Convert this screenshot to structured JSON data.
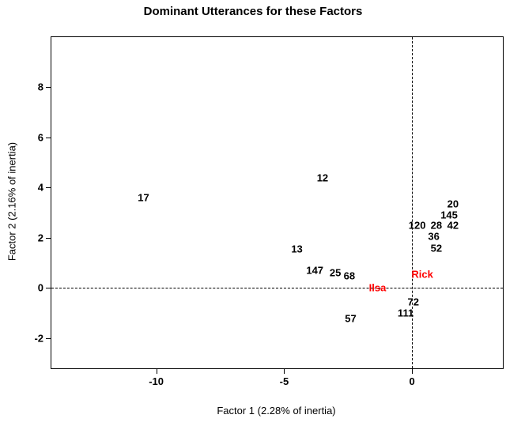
{
  "chart_data": {
    "type": "scatter",
    "title": "Dominant Utterances for these Factors",
    "xlabel": "Factor 1 (2.28% of inertia)",
    "ylabel": "Factor 2 (2.16% of inertia)",
    "xlim": [
      -14.1,
      3.55
    ],
    "ylim": [
      -3.2,
      10.0
    ],
    "xticks": [
      -10,
      -5,
      0
    ],
    "yticks": [
      -2,
      0,
      2,
      4,
      6,
      8
    ],
    "grid": false,
    "legend": "none",
    "reference_lines": {
      "vertical_x": 0,
      "horizontal_y": 0,
      "style": "dashed"
    },
    "colors": {
      "default": "#000000",
      "highlight": "#ff0000"
    },
    "points": [
      {
        "label": "17",
        "x": -10.5,
        "y": 3.6,
        "color": "#000000"
      },
      {
        "label": "12",
        "x": -3.5,
        "y": 4.4,
        "color": "#000000"
      },
      {
        "label": "13",
        "x": -4.5,
        "y": 1.55,
        "color": "#000000"
      },
      {
        "label": "147",
        "x": -3.8,
        "y": 0.7,
        "color": "#000000"
      },
      {
        "label": "25",
        "x": -3.0,
        "y": 0.6,
        "color": "#000000"
      },
      {
        "label": "68",
        "x": -2.45,
        "y": 0.5,
        "color": "#000000"
      },
      {
        "label": "57",
        "x": -2.4,
        "y": -1.2,
        "color": "#000000"
      },
      {
        "label": "Ilsa",
        "x": -1.35,
        "y": 0.0,
        "color": "#ff0000"
      },
      {
        "label": "Rick",
        "x": 0.4,
        "y": 0.55,
        "color": "#ff0000"
      },
      {
        "label": "72",
        "x": 0.05,
        "y": -0.55,
        "color": "#000000"
      },
      {
        "label": "111",
        "x": -0.25,
        "y": -1.0,
        "color": "#000000"
      },
      {
        "label": "120",
        "x": 0.2,
        "y": 2.5,
        "color": "#000000"
      },
      {
        "label": "28",
        "x": 0.95,
        "y": 2.5,
        "color": "#000000"
      },
      {
        "label": "42",
        "x": 1.6,
        "y": 2.5,
        "color": "#000000"
      },
      {
        "label": "36",
        "x": 0.85,
        "y": 2.05,
        "color": "#000000"
      },
      {
        "label": "52",
        "x": 0.95,
        "y": 1.6,
        "color": "#000000"
      },
      {
        "label": "145",
        "x": 1.45,
        "y": 2.9,
        "color": "#000000"
      },
      {
        "label": "20",
        "x": 1.6,
        "y": 3.35,
        "color": "#000000"
      }
    ]
  }
}
